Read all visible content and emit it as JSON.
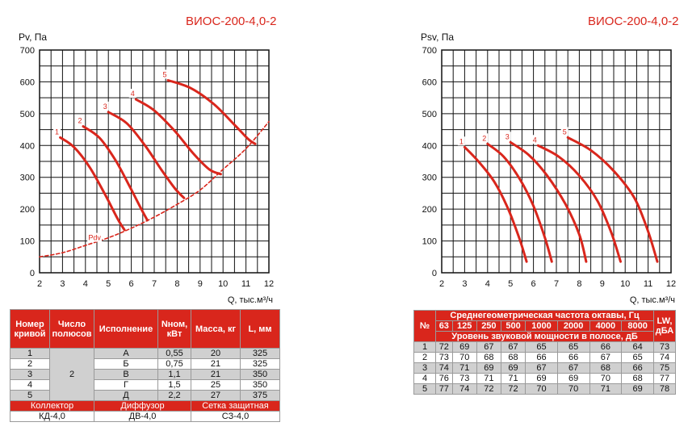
{
  "left": {
    "model_title": "ВИОС-200-4,0-2",
    "y_title": "Pv, Па",
    "x_title": "Q, тыс.м³/ч",
    "table": {
      "headers": [
        "Номер кривой",
        "Число полюсов",
        "Исполнение",
        "Nном, кВт",
        "Масса, кг",
        "L, мм"
      ],
      "poles": "2",
      "rows": [
        {
          "num": "1",
          "ver": "А",
          "power": "0,55",
          "mass": "20",
          "len": "325"
        },
        {
          "num": "2",
          "ver": "Б",
          "power": "0,75",
          "mass": "21",
          "len": "325"
        },
        {
          "num": "3",
          "ver": "В",
          "power": "1,1",
          "mass": "21",
          "len": "350"
        },
        {
          "num": "4",
          "ver": "Г",
          "power": "1,5",
          "mass": "25",
          "len": "350"
        },
        {
          "num": "5",
          "ver": "Д",
          "power": "2,2",
          "mass": "27",
          "len": "375"
        }
      ],
      "footer_labels": [
        "Коллектор",
        "Диффузор",
        "Сетка защитная"
      ],
      "footer_values": [
        "КД-4,0",
        "ДВ-4,0",
        "СЗ-4,0"
      ]
    }
  },
  "right": {
    "model_title": "ВИОС-200-4,0-2",
    "y_title": "Psv, Па",
    "x_title": "Q, тыс.м³/ч",
    "table": {
      "h_num": "№",
      "h_freq": "Среднегеометрическая частота октавы, Гц",
      "freqs": [
        "63",
        "125",
        "250",
        "500",
        "1000",
        "2000",
        "4000",
        "8000"
      ],
      "h_level": "Уровень звуковой мощности в полосе, дБ",
      "h_lw": "LW, дБА",
      "rows": [
        {
          "num": "1",
          "vals": [
            "72",
            "69",
            "67",
            "67",
            "65",
            "65",
            "66",
            "64"
          ],
          "lw": "73"
        },
        {
          "num": "2",
          "vals": [
            "73",
            "70",
            "68",
            "68",
            "66",
            "66",
            "67",
            "65"
          ],
          "lw": "74"
        },
        {
          "num": "3",
          "vals": [
            "74",
            "71",
            "69",
            "69",
            "67",
            "67",
            "68",
            "66"
          ],
          "lw": "75"
        },
        {
          "num": "4",
          "vals": [
            "76",
            "73",
            "71",
            "71",
            "69",
            "69",
            "70",
            "68"
          ],
          "lw": "77"
        },
        {
          "num": "5",
          "vals": [
            "77",
            "74",
            "72",
            "72",
            "70",
            "70",
            "71",
            "69"
          ],
          "lw": "78"
        }
      ]
    }
  },
  "chart_data": [
    {
      "type": "line",
      "title": "ВИОС-200-4,0-2",
      "xlabel": "Q, тыс.м³/ч",
      "ylabel": "Pv, Па",
      "xlim": [
        2,
        12
      ],
      "ylim": [
        0,
        700
      ],
      "xticks": [
        "2",
        "3",
        "4",
        "5",
        "6",
        "7",
        "8",
        "9",
        "10",
        "11",
        "12"
      ],
      "yticks": [
        "0",
        "100",
        "200",
        "300",
        "400",
        "500",
        "600",
        "700"
      ],
      "grid": true,
      "color": "#d9261c",
      "series": [
        {
          "name": "1",
          "x": [
            2.9,
            3.5,
            4.2,
            4.9,
            5.4,
            5.7
          ],
          "y": [
            425,
            395,
            330,
            240,
            170,
            135
          ]
        },
        {
          "name": "2",
          "x": [
            3.9,
            4.6,
            5.3,
            5.9,
            6.4,
            6.7
          ],
          "y": [
            460,
            425,
            355,
            275,
            205,
            165
          ]
        },
        {
          "name": "3",
          "x": [
            5.0,
            5.8,
            6.6,
            7.3,
            7.9,
            8.3
          ],
          "y": [
            505,
            470,
            400,
            325,
            265,
            235
          ]
        },
        {
          "name": "4",
          "x": [
            6.2,
            7.0,
            7.9,
            8.7,
            9.4,
            9.9
          ],
          "y": [
            545,
            510,
            445,
            375,
            325,
            310
          ]
        },
        {
          "name": "5",
          "x": [
            7.6,
            8.6,
            9.6,
            10.5,
            11.1,
            11.4
          ],
          "y": [
            605,
            580,
            530,
            465,
            420,
            405
          ]
        },
        {
          "name": "Pdv",
          "dashed": true,
          "x": [
            2.0,
            3.0,
            4.0,
            5.0,
            6.0,
            7.0,
            8.0,
            9.0,
            10.0,
            11.0,
            12.0
          ],
          "y": [
            50,
            63,
            86,
            110,
            140,
            175,
            215,
            260,
            325,
            390,
            475
          ]
        }
      ]
    },
    {
      "type": "line",
      "title": "ВИОС-200-4,0-2",
      "xlabel": "Q, тыс.м³/ч",
      "ylabel": "Psv, Па",
      "xlim": [
        2,
        12
      ],
      "ylim": [
        0,
        700
      ],
      "xticks": [
        "2",
        "3",
        "4",
        "5",
        "6",
        "7",
        "8",
        "9",
        "10",
        "11",
        "12"
      ],
      "yticks": [
        "0",
        "100",
        "200",
        "300",
        "400",
        "500",
        "600",
        "700"
      ],
      "grid": true,
      "color": "#d9261c",
      "series": [
        {
          "name": "1",
          "x": [
            3.0,
            3.6,
            4.3,
            4.9,
            5.4,
            5.7
          ],
          "y": [
            395,
            350,
            285,
            200,
            105,
            35
          ]
        },
        {
          "name": "2",
          "x": [
            4.0,
            4.7,
            5.4,
            6.0,
            6.5,
            6.8
          ],
          "y": [
            405,
            365,
            295,
            210,
            110,
            35
          ]
        },
        {
          "name": "3",
          "x": [
            5.0,
            5.8,
            6.6,
            7.4,
            8.0,
            8.3
          ],
          "y": [
            410,
            370,
            305,
            215,
            120,
            35
          ]
        },
        {
          "name": "4",
          "x": [
            6.2,
            7.1,
            8.0,
            8.8,
            9.4,
            9.8
          ],
          "y": [
            400,
            365,
            305,
            225,
            125,
            35
          ]
        },
        {
          "name": "5",
          "x": [
            7.5,
            8.5,
            9.5,
            10.4,
            11.0,
            11.4
          ],
          "y": [
            425,
            385,
            320,
            235,
            130,
            35
          ]
        }
      ]
    }
  ]
}
